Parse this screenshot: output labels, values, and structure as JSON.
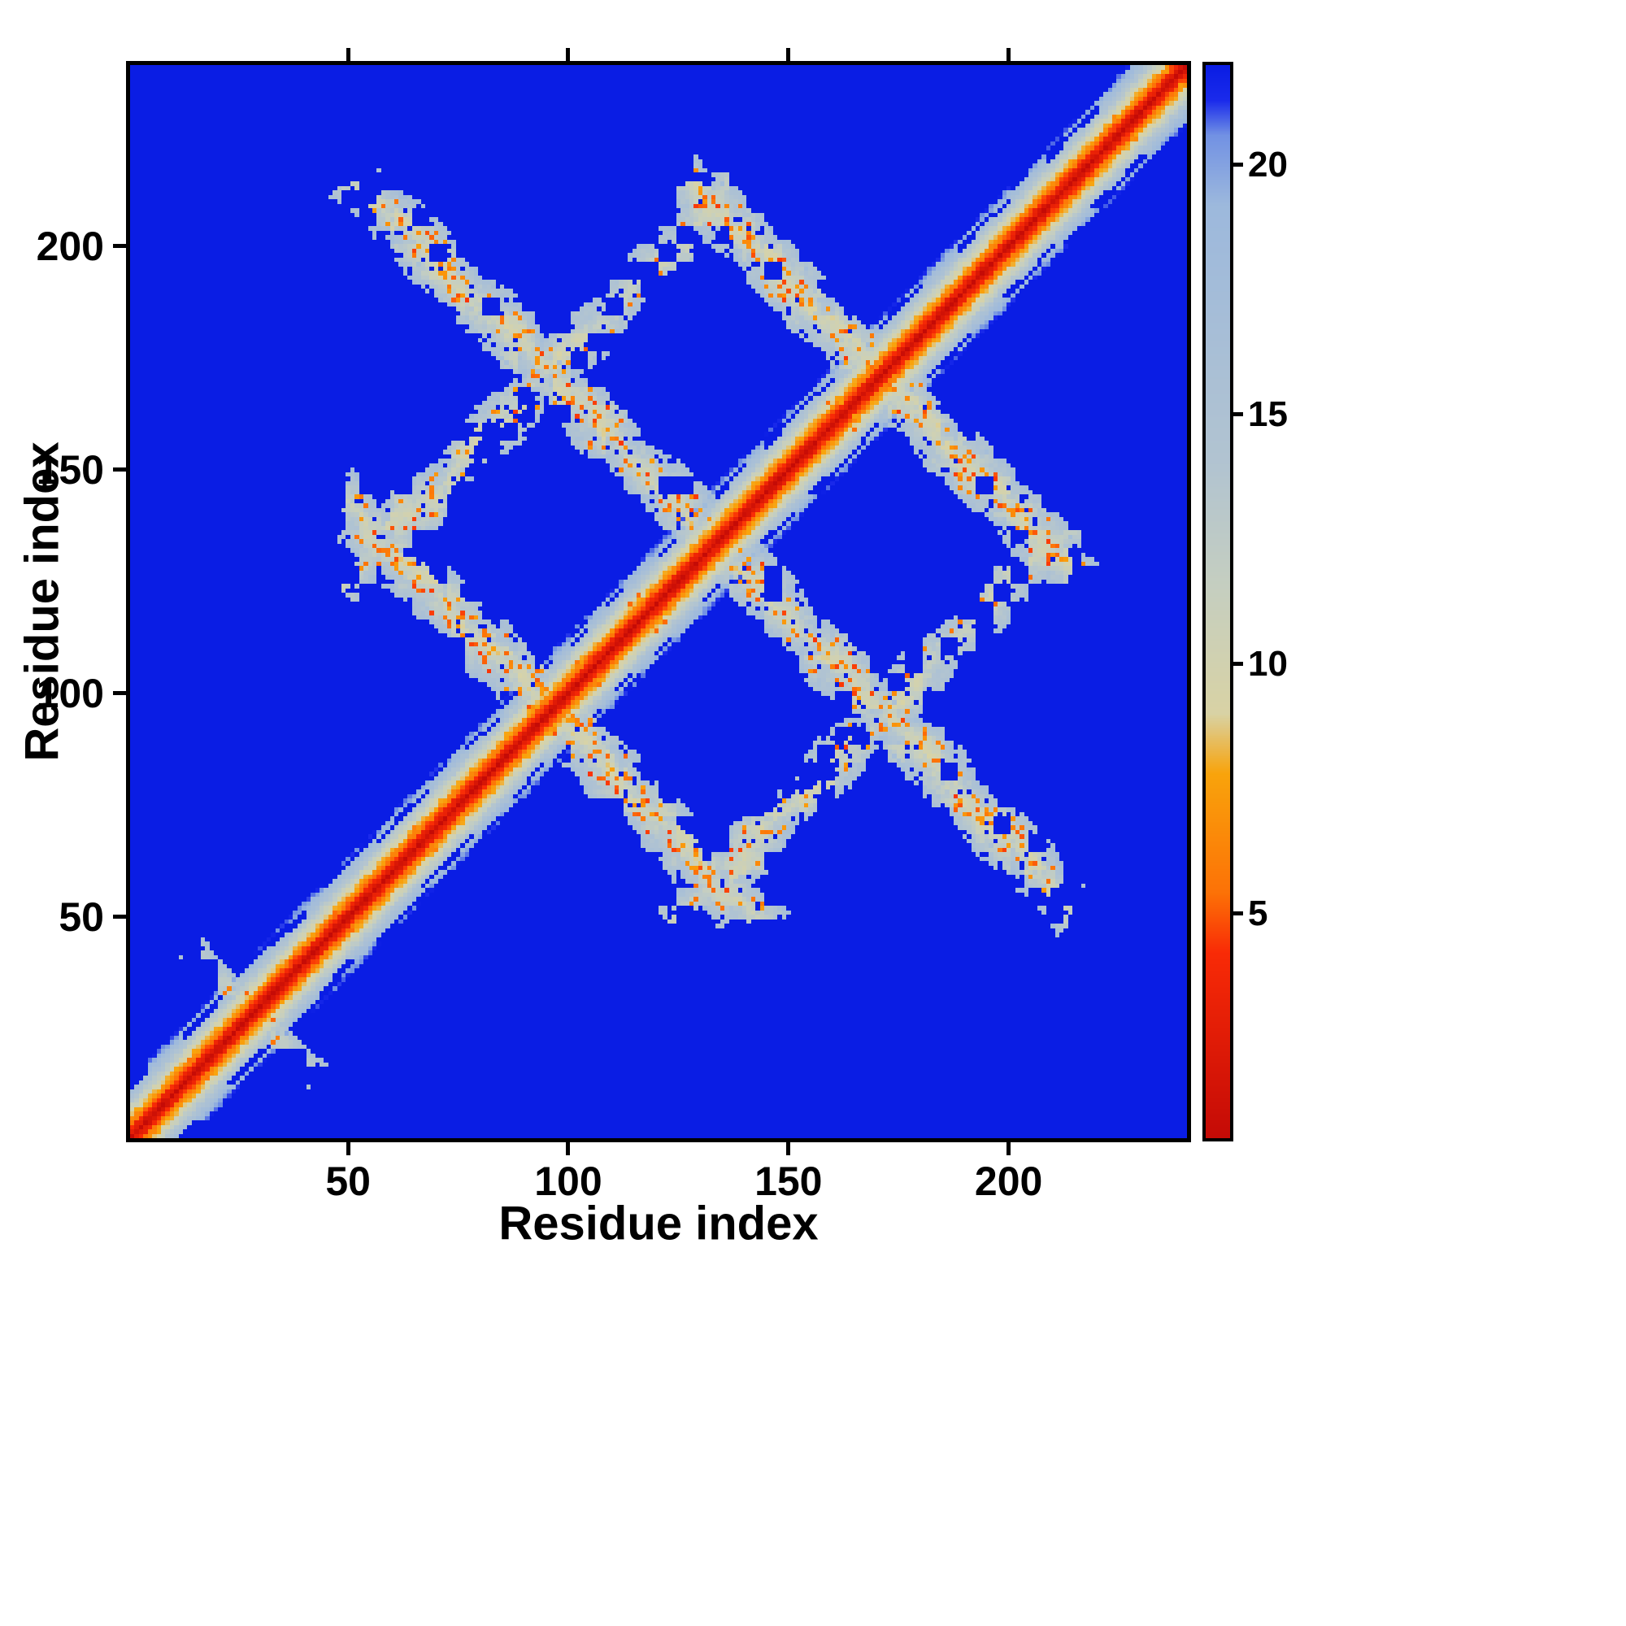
{
  "chart_data": {
    "type": "heatmap",
    "title": "",
    "xlabel": "Residue index",
    "ylabel": "Residue index",
    "x_range": [
      1,
      240
    ],
    "y_range": [
      1,
      240
    ],
    "x_ticks": [
      50,
      100,
      150,
      200
    ],
    "y_ticks": [
      50,
      100,
      150,
      200
    ],
    "grid": false,
    "legend": "colorbar",
    "colorbar": {
      "position": "right",
      "ticks": [
        5,
        10,
        15,
        20
      ],
      "vmin": 0.5,
      "vmax": 22
    },
    "colormap_stops": [
      [
        0.5,
        "#c50b06"
      ],
      [
        4.2,
        "#f92b06"
      ],
      [
        5.4,
        "#fd7207"
      ],
      [
        7.8,
        "#f9a40c"
      ],
      [
        9.0,
        "#d9d3a5"
      ],
      [
        11.5,
        "#c6cfc0"
      ],
      [
        14.0,
        "#b2c4d1"
      ],
      [
        19.2,
        "#9db9dd"
      ],
      [
        20.6,
        "#7292e4"
      ],
      [
        21.3,
        "#1b2bec"
      ],
      [
        22.0,
        "#0a1de4"
      ]
    ],
    "matrix_model": {
      "description": "Symmetric 240x240 residue-residue distance map. Red core along the main diagonal (short distances), orange halo, then pale sage/blue-gray band out to ~12 residues. Off-diagonal pale speckled bands mark inter-segment contacts forming an X-lattice: antiparallel hairpin contacts crossing the diagonal near residues 95, 133 and 170, a parallel contact band at sequence separation ~76, and a small N-terminal contact near residue 28. Background blue = distances beyond cutoff (~21).",
      "size": 240,
      "background_value": 22,
      "diagonal": {
        "core": 0.7,
        "slope": 1.58,
        "halfwidth": 13
      },
      "bands": [
        {
          "name": "hairpin-contact-1",
          "type": "anti",
          "c": 190,
          "i0": 49,
          "i1": 141,
          "w": 8,
          "base": 10.0,
          "speckle": 0.12,
          "wobble": 1.6,
          "seed": 11
        },
        {
          "name": "hairpin-contact-2",
          "type": "anti",
          "c": 265,
          "i0": 50,
          "i1": 215,
          "w": 8,
          "base": 10.2,
          "speckle": 0.1,
          "wobble": 1.8,
          "seed": 23
        },
        {
          "name": "hairpin-contact-3",
          "type": "anti",
          "c": 340,
          "i0": 124,
          "i1": 216,
          "w": 8,
          "base": 10.0,
          "speckle": 0.12,
          "wobble": 1.6,
          "seed": 37
        },
        {
          "name": "parallel-contact",
          "type": "para",
          "c": 76,
          "i0": 48,
          "i1": 138,
          "w": 7,
          "base": 10.4,
          "speckle": 0.09,
          "wobble": 1.6,
          "seed": 51
        },
        {
          "name": "n-terminal-contact",
          "type": "anti",
          "c": 56,
          "i0": 16,
          "i1": 40,
          "w": 4,
          "base": 11.8,
          "speckle": 0.04,
          "wobble": 1.2,
          "seed": 67
        }
      ]
    }
  }
}
